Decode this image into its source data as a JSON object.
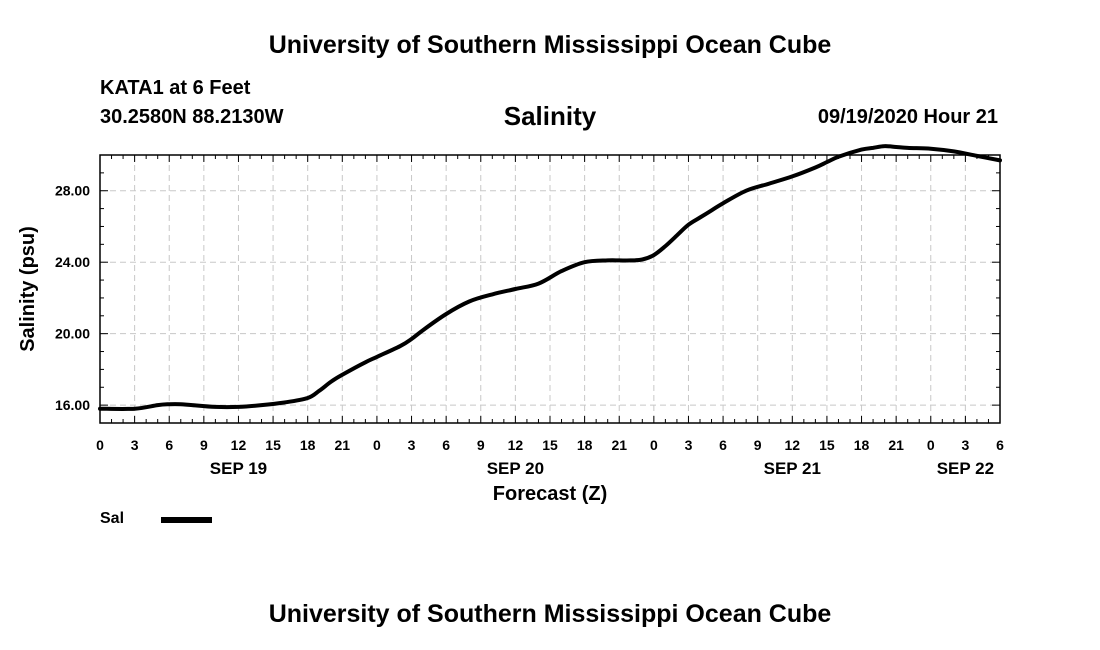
{
  "header": {
    "top_title": "University of Southern Mississippi Ocean Cube",
    "bottom_title": "University of Southern Mississippi Ocean Cube",
    "station": "KATA1 at 6 Feet",
    "coords": "30.2580N 88.2130W",
    "datetime": "09/19/2020 Hour 21"
  },
  "legend": {
    "label": "Sal",
    "color": "#000000"
  },
  "chart_data": {
    "type": "line",
    "title": "Salinity",
    "xlabel": "Forecast (Z)",
    "ylabel": "Salinity (psu)",
    "xlim": [
      0,
      78
    ],
    "ylim": [
      15,
      30
    ],
    "yticks": [
      16,
      20,
      24,
      28
    ],
    "ytick_labels": [
      "16.00",
      "20.00",
      "24.00",
      "28.00"
    ],
    "xtick_labels": [
      "0",
      "3",
      "6",
      "9",
      "12",
      "15",
      "18",
      "21",
      "0",
      "3",
      "6",
      "9",
      "12",
      "15",
      "18",
      "21",
      "0",
      "3",
      "6",
      "9",
      "12",
      "15",
      "18",
      "21",
      "0",
      "3",
      "6"
    ],
    "date_labels": [
      {
        "hour": 12,
        "label": "SEP 19"
      },
      {
        "hour": 36,
        "label": "SEP 20"
      },
      {
        "hour": 60,
        "label": "SEP 21"
      },
      {
        "hour": 75,
        "label": "SEP 22"
      }
    ],
    "grid": true,
    "series": [
      {
        "name": "Sal",
        "x": [
          0,
          3,
          5,
          6,
          7,
          8,
          10,
          12,
          14,
          16,
          18,
          19,
          20,
          21,
          23,
          24,
          26,
          27,
          28,
          30,
          32,
          34,
          36,
          38,
          40,
          42,
          44,
          45,
          46,
          47,
          48,
          49,
          50,
          51,
          52,
          53,
          54,
          56,
          58,
          60,
          62,
          63,
          64,
          66,
          67,
          68,
          69,
          70,
          72,
          74,
          76,
          78
        ],
        "y": [
          15.8,
          15.8,
          16.0,
          16.05,
          16.05,
          16.0,
          15.9,
          15.9,
          16.0,
          16.15,
          16.4,
          16.8,
          17.3,
          17.7,
          18.4,
          18.7,
          19.3,
          19.7,
          20.2,
          21.1,
          21.8,
          22.2,
          22.5,
          22.8,
          23.5,
          24.0,
          24.1,
          24.1,
          24.1,
          24.15,
          24.4,
          24.9,
          25.5,
          26.1,
          26.5,
          26.9,
          27.3,
          28.0,
          28.4,
          28.8,
          29.3,
          29.6,
          29.9,
          30.3,
          30.4,
          30.5,
          30.45,
          30.4,
          30.35,
          30.2,
          29.95,
          29.7
        ]
      }
    ]
  }
}
